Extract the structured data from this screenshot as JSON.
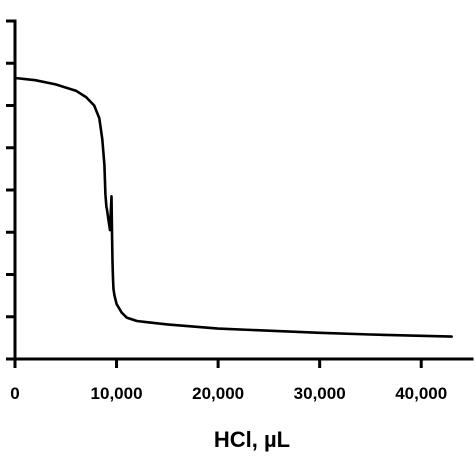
{
  "chart_data": {
    "type": "line",
    "title": "",
    "xlabel": "HCl, µL",
    "ylabel": "",
    "xlim": [
      0,
      45000
    ],
    "ylim": [
      0,
      8
    ],
    "x_ticks": [
      0,
      10000,
      20000,
      30000,
      40000
    ],
    "x_tick_labels": [
      "0",
      "10,000",
      "20,000",
      "30,000",
      "40,000"
    ],
    "y_ticks": [
      0,
      1,
      2,
      3,
      4,
      5,
      6,
      7,
      8
    ],
    "y_tick_labels": [],
    "grid": false,
    "series": [
      {
        "color": "#000000",
        "x": [
          0,
          2000,
          4000,
          6000,
          7000,
          7800,
          8300,
          8600,
          8800,
          8900,
          9000,
          9050,
          9200,
          9350,
          9500,
          9550,
          9600,
          9650,
          9700,
          9800,
          10000,
          10500,
          11000,
          12000,
          13000,
          15000,
          20000,
          25000,
          30000,
          35000,
          40000,
          43000
        ],
        "y": [
          6.65,
          6.6,
          6.5,
          6.35,
          6.2,
          6.0,
          5.7,
          5.2,
          4.6,
          3.9,
          3.6,
          3.55,
          3.3,
          3.05,
          3.85,
          3.0,
          2.3,
          1.9,
          1.65,
          1.5,
          1.3,
          1.1,
          0.98,
          0.9,
          0.87,
          0.82,
          0.72,
          0.67,
          0.62,
          0.58,
          0.55,
          0.53
        ]
      }
    ]
  }
}
